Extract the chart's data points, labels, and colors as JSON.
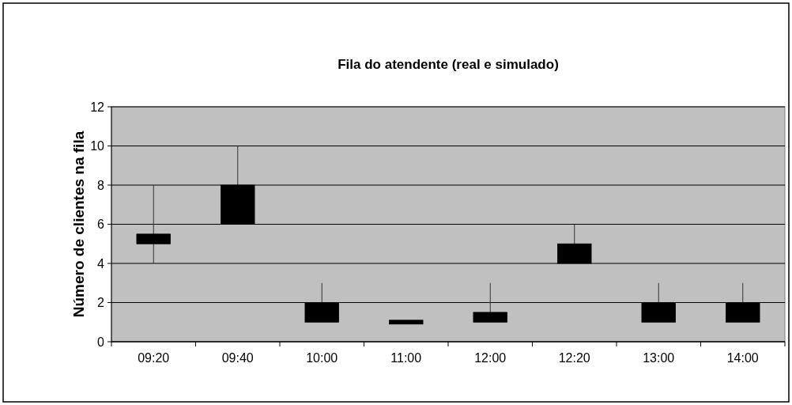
{
  "chart_data": {
    "type": "candlestick",
    "title": "Fila do atendente (real e simulado)",
    "ylabel": "Número de clientes na fila",
    "categories": [
      "09:20",
      "09:40",
      "10:00",
      "11:00",
      "12:00",
      "12:20",
      "13:00",
      "14:00"
    ],
    "ohlc": [
      [
        5.5,
        8,
        4,
        5
      ],
      [
        8,
        10,
        6,
        6
      ],
      [
        2,
        3,
        1,
        1
      ],
      [
        1.1,
        1.1,
        0.9,
        0.9
      ],
      [
        1.5,
        3,
        1,
        1
      ],
      [
        5,
        6,
        4,
        4
      ],
      [
        2,
        3,
        1,
        1
      ],
      [
        2,
        3,
        1,
        1
      ]
    ],
    "color": "#000000",
    "ylim": [
      0,
      12
    ],
    "yticks": [
      0,
      2,
      4,
      6,
      8,
      10,
      12
    ],
    "grid": "y"
  }
}
